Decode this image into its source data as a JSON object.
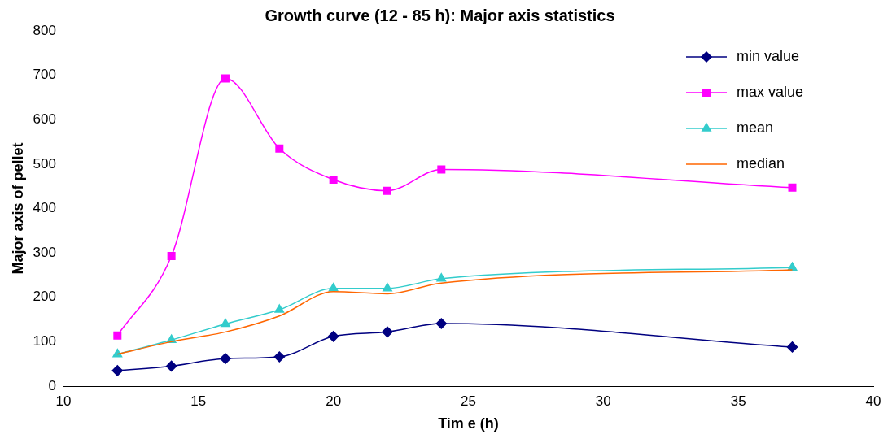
{
  "chart_data": {
    "type": "line",
    "title": "Growth curve (12 - 85 h): Major axis statistics",
    "xlabel": "Tim e (h)",
    "ylabel": "Major axis of pellet",
    "x": [
      12,
      14,
      16,
      18,
      20,
      22,
      24,
      37
    ],
    "series": [
      {
        "name": "min value",
        "color": "#000080",
        "marker": "diamond",
        "values": [
          35,
          45,
          62,
          66,
          112,
          122,
          141,
          88
        ]
      },
      {
        "name": "max value",
        "color": "#ff00ff",
        "marker": "square",
        "values": [
          114,
          293,
          693,
          535,
          465,
          440,
          488,
          447
        ]
      },
      {
        "name": "mean",
        "color": "#33cccc",
        "marker": "triangle",
        "values": [
          72,
          104,
          140,
          172,
          220,
          220,
          242,
          267
        ]
      },
      {
        "name": "median",
        "color": "#ff6600",
        "marker": "none",
        "values": [
          72,
          100,
          122,
          158,
          213,
          208,
          232,
          262
        ]
      }
    ],
    "xlim": [
      10,
      40
    ],
    "xticks": [
      10,
      15,
      20,
      25,
      30,
      35,
      40
    ],
    "ylim": [
      0,
      800
    ],
    "yticks": [
      0,
      100,
      200,
      300,
      400,
      500,
      600,
      700,
      800
    ],
    "grid": false,
    "legend": "top right",
    "line_style": "solid"
  }
}
